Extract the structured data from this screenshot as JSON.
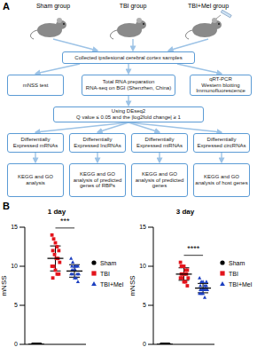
{
  "diagram": {
    "label": "A",
    "groups": [
      "Sham group",
      "TBI group",
      "TBI+Mel group"
    ],
    "collect": "Collected ipsilesional cerebral cortex samples",
    "methods": [
      "mNSS test",
      "Total RNA preparation\nRNA-seq on BGI (Shenzhen, China)",
      "qRT-PCR\nWestern blotting\nImmunofluorescence"
    ],
    "deseq": "Using DEseq2\nQ value ≤ 0.05 and the |log2fold change| ≥ 1",
    "de": [
      "Differentially Expressed mRNAs",
      "Differentially Expressed lncRNAs",
      "Differentially Expressed miRNAs",
      "Differentially Expressed circRNAs"
    ],
    "analysis": [
      "KEGG and GO analysis",
      "KEGG and GO analysis of predicted genes of RBPs",
      "KEGG and GO analysis of predicted genes",
      "KEGG and GO analysis of host genes"
    ]
  },
  "charts_label": "B",
  "chart_data": [
    {
      "type": "scatter",
      "title": "1 day",
      "y_label": "mNSS",
      "ylim": [
        0,
        15
      ],
      "yticks": [
        0,
        5,
        10,
        15
      ],
      "tick_labels": "y",
      "legend": "right",
      "series": [
        {
          "name": "Sham",
          "color": "#000000",
          "marker": "circle",
          "values": [
            0,
            0,
            0,
            0,
            0,
            0,
            0,
            0,
            0,
            0,
            0,
            0
          ],
          "mean": 0,
          "error": 0
        },
        {
          "name": "TBI",
          "color": "#e3141c",
          "marker": "square",
          "values": [
            14,
            13.5,
            13,
            12.5,
            12,
            12,
            11.5,
            11,
            11,
            10.5,
            10,
            10,
            9.5,
            9,
            9,
            8.5
          ],
          "mean": 11,
          "error": 1.6
        },
        {
          "name": "TBI+Mel",
          "color": "#1c3fc0",
          "marker": "triangle",
          "values": [
            11,
            10.5,
            10,
            10,
            10,
            9.5,
            9.5,
            9.5,
            9,
            9,
            9,
            9,
            8.5,
            8.5,
            8,
            10
          ],
          "mean": 9.4,
          "error": 0.8
        }
      ],
      "annotations": [
        {
          "text": "***",
          "between": [
            "TBI",
            "TBI+Mel"
          ]
        }
      ]
    },
    {
      "type": "scatter",
      "title": "3 day",
      "y_label": "mNSS",
      "ylim": [
        0,
        15
      ],
      "yticks": [
        0,
        5,
        10,
        15
      ],
      "tick_labels": "y",
      "legend": "right",
      "series": [
        {
          "name": "Sham",
          "color": "#000000",
          "marker": "circle",
          "values": [
            0,
            0,
            0,
            0,
            0,
            0,
            0,
            0,
            0,
            0,
            0,
            0
          ],
          "mean": 0,
          "error": 0
        },
        {
          "name": "TBI",
          "color": "#e3141c",
          "marker": "square",
          "values": [
            10.5,
            10,
            10,
            9.5,
            9.5,
            9,
            9,
            9,
            9,
            8.5,
            8.5,
            8.5,
            8,
            8,
            7.5,
            10
          ],
          "mean": 9,
          "error": 0.8
        },
        {
          "name": "TBI+Mel",
          "color": "#1c3fc0",
          "marker": "triangle",
          "values": [
            8.5,
            8,
            8,
            7.5,
            7.5,
            7.5,
            7,
            7,
            7,
            7,
            6.5,
            6.5,
            6.5,
            6,
            8,
            7
          ],
          "mean": 7.2,
          "error": 0.6
        }
      ],
      "annotations": [
        {
          "text": "****",
          "between": [
            "TBI",
            "TBI+Mel"
          ]
        }
      ]
    }
  ]
}
